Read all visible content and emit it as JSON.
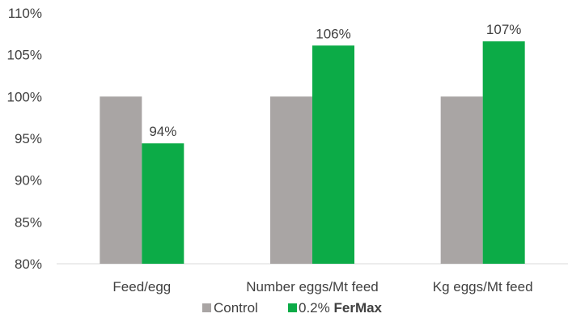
{
  "chart_data": {
    "type": "bar",
    "categories": [
      "Feed/egg",
      "Number eggs/Mt feed",
      "Kg eggs/Mt feed"
    ],
    "series": [
      {
        "name": "Control",
        "values": [
          100,
          100,
          100
        ],
        "color": "#a9a5a4"
      },
      {
        "name_prefix": "0.2% ",
        "name_strong": "FerMax",
        "values": [
          94.4,
          106.1,
          106.6
        ],
        "color": "#0cab47"
      }
    ],
    "data_labels": [
      "94%",
      "106%",
      "107%"
    ],
    "y_ticks": [
      "80%",
      "85%",
      "90%",
      "95%",
      "100%",
      "105%",
      "110%"
    ],
    "ylim": [
      80,
      110
    ],
    "ystep": 5,
    "grid": false,
    "legend_position": "bottom"
  }
}
